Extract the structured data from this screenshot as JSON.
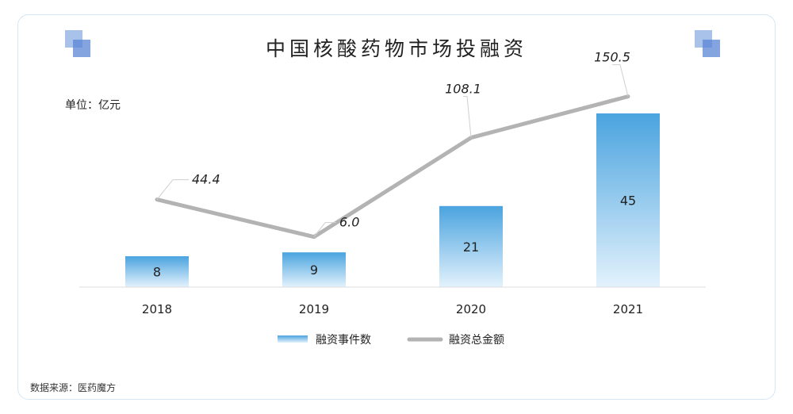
{
  "title": "中国核酸药物市场投融资",
  "unit_label": "单位：亿元",
  "source": "数据来源：医药魔方",
  "chart_data": {
    "type": "bar",
    "categories": [
      "2018",
      "2019",
      "2020",
      "2021"
    ],
    "series": [
      {
        "name": "融资事件数",
        "type": "bar",
        "values": [
          8,
          9,
          21,
          45
        ],
        "color": "#4aa3df"
      },
      {
        "name": "融资总金额",
        "type": "line",
        "values": [
          44.4,
          6.0,
          108.1,
          150.5
        ],
        "labels": [
          "44.4",
          "6.0",
          "108.1",
          "150.5"
        ],
        "color": "#b3b3b3"
      }
    ],
    "xlabel": "",
    "ylabel": ""
  }
}
